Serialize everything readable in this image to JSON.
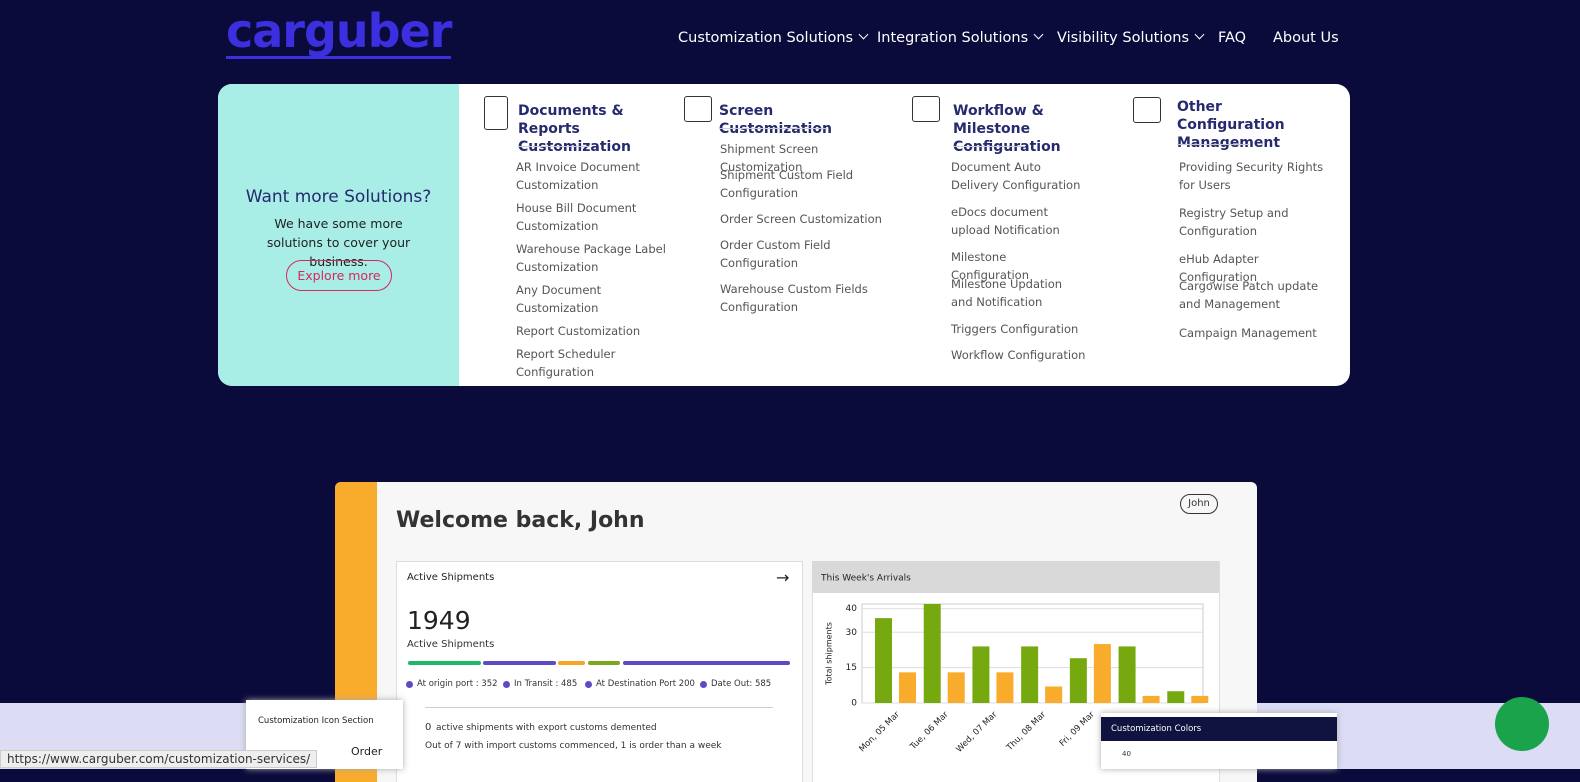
{
  "nav": {
    "logo": "carguber",
    "links": [
      "Customization Solutions",
      "Integration Solutions",
      "Visibility Solutions",
      "FAQ",
      "About Us"
    ]
  },
  "menu": {
    "promo": {
      "title": "Want more Solutions?",
      "text": "We have some more solutions to cover your business.",
      "button": "Explore more"
    },
    "columns": [
      {
        "title": "Documents & Reports Customization",
        "items": [
          "AR Invoice Document Customization",
          "House Bill Document Customization",
          "Warehouse Package Label Customization",
          "Any Document Customization",
          "Report Customization",
          "Report Scheduler Configuration"
        ]
      },
      {
        "title": "Screen Customization",
        "items": [
          "Shipment Screen Customization",
          "Shipment Custom Field Configuration",
          "Order Screen Customization",
          "Order Custom Field Configuration",
          "Warehouse Custom Fields Configuration"
        ]
      },
      {
        "title": "Workflow & Milestone Configuration",
        "items": [
          "Document Auto Delivery Configuration",
          "eDocs document upload Notification",
          "Milestone Configuration",
          "Milestone Updation and Notification",
          "Triggers Configuration",
          "Workflow Configuration"
        ]
      },
      {
        "title": "Other Configuration Management",
        "items": [
          "Providing Security Rights for Users",
          "Registry Setup and Configuration",
          "eHub Adapter Configuration",
          "Cargowise Patch update and Management",
          "Campaign Management"
        ]
      }
    ]
  },
  "dashboard": {
    "welcome": "Welcome back, John",
    "user": "John",
    "card_title": "Active Shipments",
    "total": "1949",
    "total_label": "Active Shipments",
    "legend": [
      "At origin port : 352",
      "In Transit : 485",
      "At Destination Port 200",
      "Date Out: 585"
    ],
    "export_count": "0",
    "export_text": "active shipments with export customs demented",
    "import_text": "Out of 7 with import customs commenced, 1 is order than a week",
    "icon_section": "Customization Icon Section",
    "order": "Order",
    "colors_title": "Customization Colors",
    "colors_tick": "40"
  },
  "chart_data": {
    "type": "bar",
    "title": "This Week's Arrivals",
    "y_label": "Total shipments",
    "categories": [
      "Mon, 05 Mar",
      "Tue, 06 Mar",
      "Wed, 07 Mar",
      "Thu, 08 Mar",
      "Fri, 09 Mar",
      null,
      null
    ],
    "series": [
      {
        "color": "#76a80f",
        "values": [
          36,
          42,
          24,
          24,
          19,
          24,
          5
        ]
      },
      {
        "color": "#f9ab2b",
        "values": [
          13,
          13,
          13,
          7,
          25,
          3,
          3
        ]
      }
    ],
    "ylim": [
      0,
      42
    ],
    "yticks": [
      0,
      15,
      30,
      40
    ],
    "grid": true
  },
  "status_url": "https://www.carguber.com/customization-services/"
}
